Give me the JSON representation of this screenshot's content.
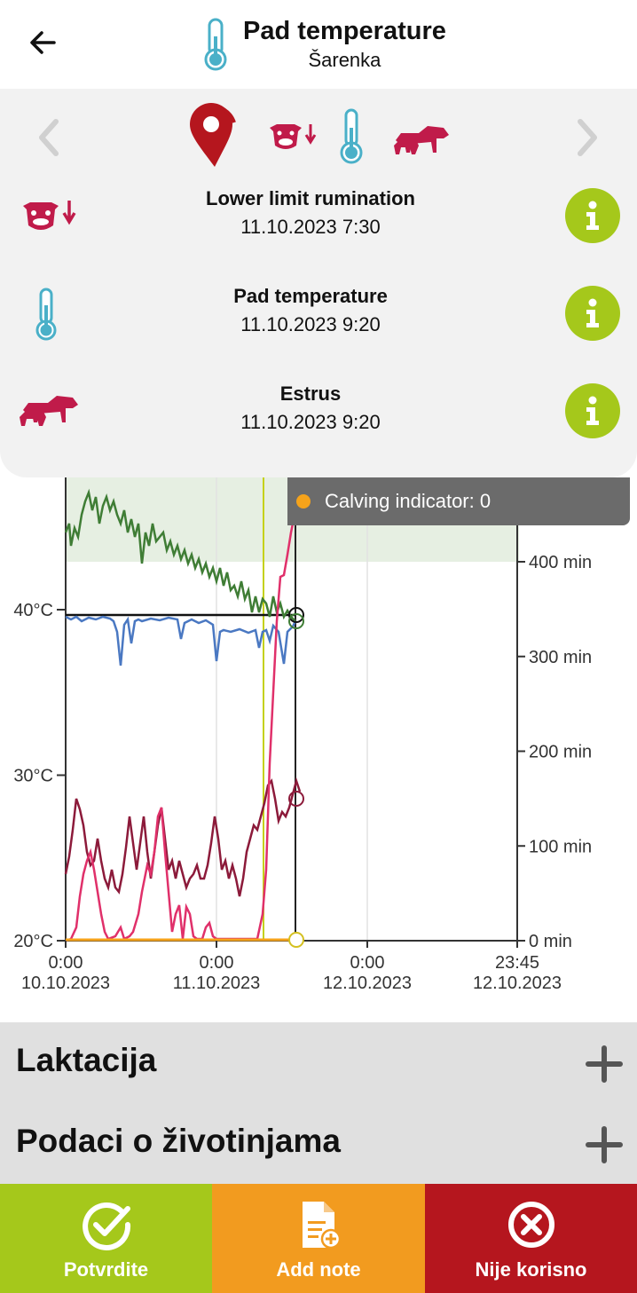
{
  "header": {
    "title": "Pad temperature",
    "subtitle": "Šarenka",
    "icon": "thermometer-icon",
    "back_icon": "back-arrow-icon"
  },
  "panel": {
    "strip_icons": [
      "location-pin-icon",
      "cow-rumination-down-icon",
      "thermometer-icon",
      "estrus-cows-icon"
    ],
    "alerts": [
      {
        "icon": "cow-rumination-down-icon",
        "title": "Lower limit rumination",
        "date": "11.10.2023 7:30"
      },
      {
        "icon": "thermometer-icon",
        "title": "Pad temperature",
        "date": "11.10.2023 9:20"
      },
      {
        "icon": "estrus-cows-icon",
        "title": "Estrus",
        "date": "11.10.2023 9:20"
      }
    ]
  },
  "tooltip": {
    "text": "Calving indicator: 0",
    "dot_color": "#f5a31b"
  },
  "chart_data": {
    "type": "line",
    "left_axis": {
      "ticks": [
        "20°C",
        "30°C",
        "40°C"
      ],
      "values": [
        20,
        30,
        40
      ]
    },
    "right_axis": {
      "ticks": [
        "0 min",
        "100 min",
        "200 min",
        "300 min",
        "400 min"
      ],
      "values": [
        0,
        100,
        200,
        300,
        400
      ]
    },
    "x_ticks": [
      {
        "time": "0:00",
        "date": "10.10.2023"
      },
      {
        "time": "0:00",
        "date": "11.10.2023"
      },
      {
        "time": "0:00",
        "date": "12.10.2023"
      },
      {
        "time": "23:45",
        "date": "12.10.2023"
      }
    ],
    "series_colors": {
      "rumination": "#3f7d35",
      "temperature": "#4a78c2",
      "activity": "#8c1a3a",
      "estrus": "#e0306a",
      "calving": "#f5a31b",
      "reference": "#111111",
      "marker": "#c5d11a"
    },
    "reference_band_color": "#e6efe2"
  },
  "sections": [
    {
      "label": "Laktacija",
      "icon": "plus-icon"
    },
    {
      "label": "Podaci o životinjama",
      "icon": "plus-icon"
    }
  ],
  "actions": [
    {
      "label": "Potvrdite",
      "icon": "check-circle-icon",
      "color": "#a5c81b"
    },
    {
      "label": "Add note",
      "icon": "add-note-icon",
      "color": "#f29b1f"
    },
    {
      "label": "Nije korisno",
      "icon": "close-circle-icon",
      "color": "#b5161e"
    }
  ]
}
